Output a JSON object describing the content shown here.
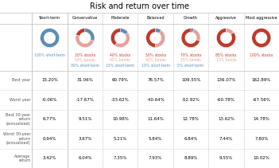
{
  "chart_data": [
    {
      "type": "table",
      "title": "Risk and return over time",
      "columns": [
        "Short-term",
        "Conservative",
        "Moderate",
        "Balanced",
        "Growth",
        "Aggressive",
        "Most aggressive"
      ],
      "rows": [
        "Best year",
        "Worst year",
        "Best 30-year\nreturn\n(annualized)",
        "Worst 30-year\nreturn\n(annualized)",
        "Average\nreturn"
      ],
      "values": [
        [
          15.2,
          31.06,
          60.79,
          76.57,
          109.55,
          136.07,
          162.89
        ],
        [
          -0.06,
          -17.67,
          -33.62,
          -40.64,
          -52.92,
          -60.78,
          -67.56
        ],
        [
          6.77,
          9.51,
          10.98,
          11.64,
          12.78,
          13.62,
          14.78
        ],
        [
          0.94,
          3.67,
          5.21,
          5.84,
          6.84,
          7.44,
          7.8
        ],
        [
          3.42,
          6.04,
          7.35,
          7.93,
          8.89,
          9.55,
          10.02
        ]
      ],
      "value_labels": [
        [
          "15.20%",
          "31.06%",
          "60.79%",
          "76.57%",
          "109.55%",
          "136.07%",
          "162.89%"
        ],
        [
          "-0.06%",
          "-17.67%",
          "-33.62%",
          "-40.64%",
          "-52.92%",
          "-60.78%",
          "-67.56%"
        ],
        [
          "6.77%",
          "9.51%",
          "10.98%",
          "11.64%",
          "12.78%",
          "13.62%",
          "14.78%"
        ],
        [
          "0.94%",
          "3.67%",
          "5.21%",
          "5.84%",
          "6.84%",
          "7.44%",
          "7.80%"
        ],
        [
          "3.42%",
          "6.04%",
          "7.35%",
          "7.93%",
          "8.89%",
          "9.55%",
          "10.02%"
        ]
      ]
    },
    {
      "type": "pie",
      "categories": [
        "100% short-term"
      ],
      "values": [
        100
      ],
      "colors": [
        "#5b8db8"
      ]
    },
    {
      "type": "pie",
      "categories": [
        "20% stocks",
        "50% bonds",
        "30% short-term"
      ],
      "values": [
        20,
        50,
        30
      ],
      "colors": [
        "#c0392b",
        "#e8a09a",
        "#5b8db8"
      ]
    },
    {
      "type": "pie",
      "categories": [
        "40% stocks",
        "45% bonds",
        "15% short-term"
      ],
      "values": [
        40,
        45,
        15
      ],
      "colors": [
        "#c0392b",
        "#e8a09a",
        "#5b8db8"
      ]
    },
    {
      "type": "pie",
      "categories": [
        "50% stocks",
        "40% bonds",
        "10% short-term"
      ],
      "values": [
        50,
        40,
        10
      ],
      "colors": [
        "#c0392b",
        "#e8a09a",
        "#5b8db8"
      ]
    },
    {
      "type": "pie",
      "categories": [
        "70% stocks",
        "25% bonds",
        "5% short-term"
      ],
      "values": [
        70,
        25,
        5
      ],
      "colors": [
        "#c0392b",
        "#e8a09a",
        "#5b8db8"
      ]
    },
    {
      "type": "pie",
      "categories": [
        "85% stocks",
        "15% bonds"
      ],
      "values": [
        85,
        15
      ],
      "colors": [
        "#c0392b",
        "#e8a09a"
      ]
    },
    {
      "type": "pie",
      "categories": [
        "100% stocks"
      ],
      "values": [
        100
      ],
      "colors": [
        "#c0392b"
      ]
    }
  ]
}
